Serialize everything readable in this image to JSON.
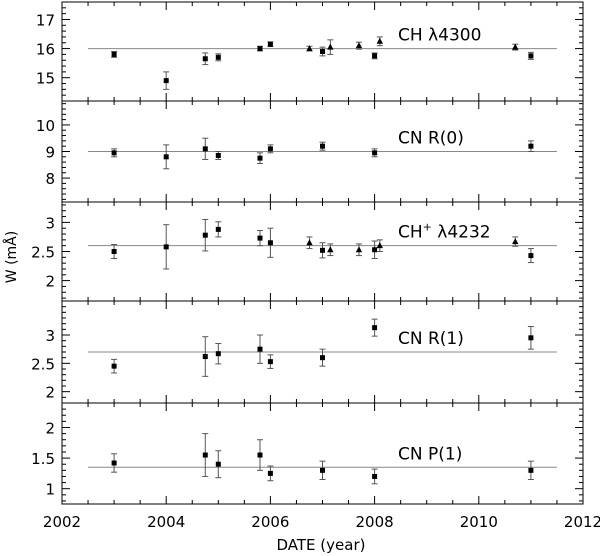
{
  "chart_data": [
    {
      "type": "scatter",
      "label": "CH λ4300",
      "label_main": "CH ",
      "label_sup": "",
      "label_rest": "λ4300",
      "ylim": [
        14.2,
        17.6
      ],
      "yticks": [
        15,
        16,
        17
      ],
      "mean": 16.0,
      "points": [
        {
          "x": 2003.0,
          "y": 15.8,
          "err": 0.1,
          "marker": "square"
        },
        {
          "x": 2004.0,
          "y": 14.9,
          "err": 0.3,
          "marker": "square"
        },
        {
          "x": 2004.75,
          "y": 15.65,
          "err": 0.2,
          "marker": "square"
        },
        {
          "x": 2005.0,
          "y": 15.7,
          "err": 0.12,
          "marker": "square"
        },
        {
          "x": 2005.8,
          "y": 16.0,
          "err": 0.08,
          "marker": "square"
        },
        {
          "x": 2006.0,
          "y": 16.15,
          "err": 0.08,
          "marker": "square"
        },
        {
          "x": 2006.75,
          "y": 16.0,
          "err": 0.08,
          "marker": "triangle"
        },
        {
          "x": 2007.0,
          "y": 15.9,
          "err": 0.15,
          "marker": "square"
        },
        {
          "x": 2007.15,
          "y": 16.05,
          "err": 0.25,
          "marker": "triangle"
        },
        {
          "x": 2007.7,
          "y": 16.1,
          "err": 0.12,
          "marker": "triangle"
        },
        {
          "x": 2008.0,
          "y": 15.75,
          "err": 0.1,
          "marker": "square"
        },
        {
          "x": 2008.1,
          "y": 16.25,
          "err": 0.15,
          "marker": "triangle"
        },
        {
          "x": 2010.7,
          "y": 16.05,
          "err": 0.1,
          "marker": "triangle"
        },
        {
          "x": 2011.0,
          "y": 15.75,
          "err": 0.12,
          "marker": "square"
        }
      ]
    },
    {
      "type": "scatter",
      "label": "CN R(0)",
      "label_main": "CN R(0)",
      "label_sup": "",
      "label_rest": "",
      "ylim": [
        7.1,
        10.9
      ],
      "yticks": [
        8,
        9,
        10
      ],
      "mean": 9.0,
      "points": [
        {
          "x": 2003.0,
          "y": 8.95,
          "err": 0.15,
          "marker": "square"
        },
        {
          "x": 2004.0,
          "y": 8.8,
          "err": 0.45,
          "marker": "square"
        },
        {
          "x": 2004.75,
          "y": 9.1,
          "err": 0.4,
          "marker": "square"
        },
        {
          "x": 2005.0,
          "y": 8.85,
          "err": 0.15,
          "marker": "square"
        },
        {
          "x": 2005.8,
          "y": 8.75,
          "err": 0.2,
          "marker": "square"
        },
        {
          "x": 2006.0,
          "y": 9.1,
          "err": 0.15,
          "marker": "square"
        },
        {
          "x": 2007.0,
          "y": 9.2,
          "err": 0.15,
          "marker": "square"
        },
        {
          "x": 2008.0,
          "y": 8.95,
          "err": 0.15,
          "marker": "square"
        },
        {
          "x": 2011.0,
          "y": 9.2,
          "err": 0.2,
          "marker": "square"
        }
      ]
    },
    {
      "type": "scatter",
      "label": "CH+ λ4232",
      "label_main": "CH",
      "label_sup": "+",
      "label_rest": " λ4232",
      "ylim": [
        1.65,
        3.35
      ],
      "yticks": [
        2,
        2.5,
        3
      ],
      "mean": 2.6,
      "points": [
        {
          "x": 2003.0,
          "y": 2.5,
          "err": 0.12,
          "marker": "square"
        },
        {
          "x": 2004.0,
          "y": 2.58,
          "err": 0.38,
          "marker": "square"
        },
        {
          "x": 2004.75,
          "y": 2.78,
          "err": 0.27,
          "marker": "square"
        },
        {
          "x": 2005.0,
          "y": 2.88,
          "err": 0.13,
          "marker": "square"
        },
        {
          "x": 2005.8,
          "y": 2.73,
          "err": 0.13,
          "marker": "square"
        },
        {
          "x": 2006.0,
          "y": 2.65,
          "err": 0.25,
          "marker": "square"
        },
        {
          "x": 2006.75,
          "y": 2.65,
          "err": 0.1,
          "marker": "triangle"
        },
        {
          "x": 2007.0,
          "y": 2.52,
          "err": 0.13,
          "marker": "square"
        },
        {
          "x": 2007.15,
          "y": 2.53,
          "err": 0.1,
          "marker": "triangle"
        },
        {
          "x": 2007.7,
          "y": 2.53,
          "err": 0.1,
          "marker": "triangle"
        },
        {
          "x": 2008.0,
          "y": 2.53,
          "err": 0.15,
          "marker": "square"
        },
        {
          "x": 2008.1,
          "y": 2.6,
          "err": 0.1,
          "marker": "triangle"
        },
        {
          "x": 2010.7,
          "y": 2.67,
          "err": 0.08,
          "marker": "triangle"
        },
        {
          "x": 2011.0,
          "y": 2.43,
          "err": 0.12,
          "marker": "square"
        }
      ]
    },
    {
      "type": "scatter",
      "label": "CN R(1)",
      "label_main": "CN R(1)",
      "label_sup": "",
      "label_rest": "",
      "ylim": [
        1.8,
        3.6
      ],
      "yticks": [
        2,
        2.5,
        3
      ],
      "mean": 2.7,
      "points": [
        {
          "x": 2003.0,
          "y": 2.45,
          "err": 0.12,
          "marker": "square"
        },
        {
          "x": 2004.75,
          "y": 2.62,
          "err": 0.35,
          "marker": "square"
        },
        {
          "x": 2005.0,
          "y": 2.67,
          "err": 0.18,
          "marker": "square"
        },
        {
          "x": 2005.8,
          "y": 2.75,
          "err": 0.25,
          "marker": "square"
        },
        {
          "x": 2006.0,
          "y": 2.53,
          "err": 0.12,
          "marker": "square"
        },
        {
          "x": 2007.0,
          "y": 2.6,
          "err": 0.15,
          "marker": "square"
        },
        {
          "x": 2008.0,
          "y": 3.13,
          "err": 0.15,
          "marker": "square"
        },
        {
          "x": 2011.0,
          "y": 2.95,
          "err": 0.2,
          "marker": "square"
        }
      ]
    },
    {
      "type": "scatter",
      "label": "CN P(1)",
      "label_main": "CN P(1)",
      "label_sup": "",
      "label_rest": "",
      "ylim": [
        0.75,
        2.4
      ],
      "yticks": [
        1,
        1.5,
        2
      ],
      "mean": 1.35,
      "points": [
        {
          "x": 2003.0,
          "y": 1.42,
          "err": 0.15,
          "marker": "square"
        },
        {
          "x": 2004.75,
          "y": 1.55,
          "err": 0.35,
          "marker": "square"
        },
        {
          "x": 2005.0,
          "y": 1.4,
          "err": 0.22,
          "marker": "square"
        },
        {
          "x": 2005.8,
          "y": 1.55,
          "err": 0.25,
          "marker": "square"
        },
        {
          "x": 2006.0,
          "y": 1.25,
          "err": 0.12,
          "marker": "square"
        },
        {
          "x": 2007.0,
          "y": 1.3,
          "err": 0.15,
          "marker": "square"
        },
        {
          "x": 2008.0,
          "y": 1.2,
          "err": 0.12,
          "marker": "square"
        },
        {
          "x": 2011.0,
          "y": 1.3,
          "err": 0.15,
          "marker": "square"
        }
      ]
    }
  ],
  "axes": {
    "xlim": [
      2002,
      2012
    ],
    "xticks": [
      2002,
      2004,
      2006,
      2008,
      2010,
      2012
    ],
    "xlabel": "DATE (year)",
    "ylabel": "W (mÅ)"
  }
}
